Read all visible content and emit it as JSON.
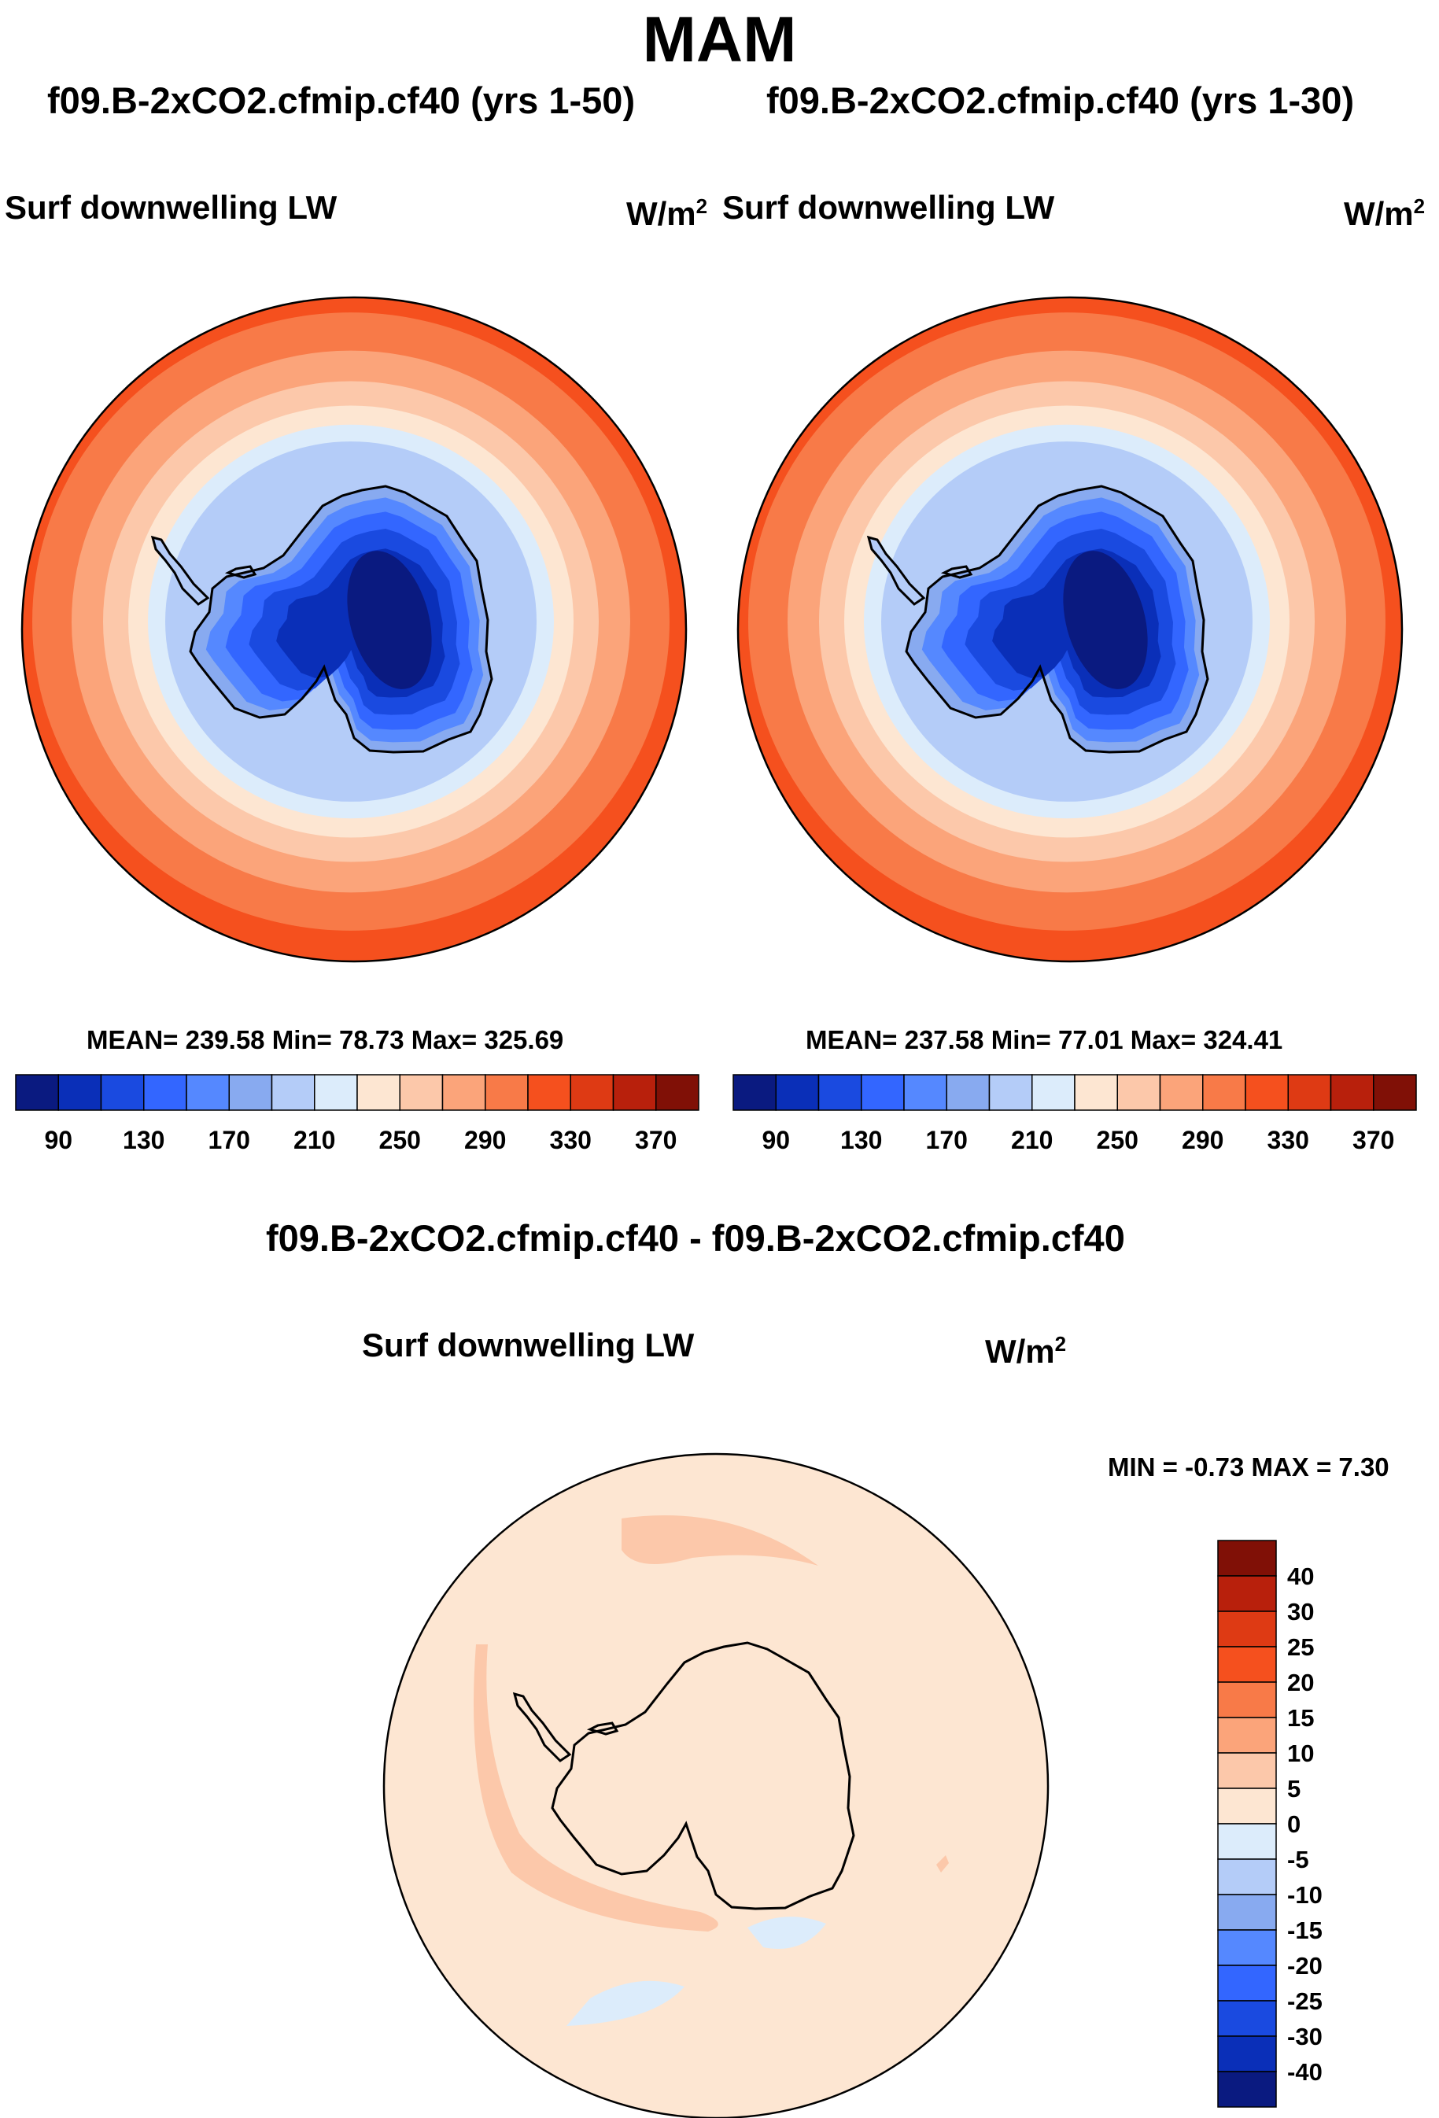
{
  "figure_title": "MAM",
  "chart_data": [
    {
      "type": "filled-contour-map",
      "projection": "south polar stereographic",
      "case": "f09.B-2xCO2.cfmip.cf40 (yrs 1-50)",
      "variable": "Surf downwelling LW",
      "units_base": "W/m",
      "units_exp": "2",
      "stats": {
        "mean": "239.58",
        "min": "78.73",
        "max": "325.69"
      },
      "stats_line": "MEAN= 239.58  Min=  78.73  Max= 325.69",
      "contour_levels": [
        90,
        110,
        130,
        150,
        170,
        190,
        210,
        230,
        250,
        270,
        290,
        310,
        330,
        350,
        370
      ],
      "colorbar_labels": [
        "90",
        "130",
        "170",
        "210",
        "250",
        "290",
        "330",
        "370"
      ]
    },
    {
      "type": "filled-contour-map",
      "projection": "south polar stereographic",
      "case": "f09.B-2xCO2.cfmip.cf40 (yrs 1-30)",
      "variable": "Surf downwelling LW",
      "units_base": "W/m",
      "units_exp": "2",
      "stats": {
        "mean": "237.58",
        "min": "77.01",
        "max": "324.41"
      },
      "stats_line": "MEAN= 237.58  Min=  77.01  Max= 324.41",
      "contour_levels": [
        90,
        110,
        130,
        150,
        170,
        190,
        210,
        230,
        250,
        270,
        290,
        310,
        330,
        350,
        370
      ],
      "colorbar_labels": [
        "90",
        "130",
        "170",
        "210",
        "250",
        "290",
        "330",
        "370"
      ]
    },
    {
      "type": "filled-contour-map",
      "projection": "south polar stereographic",
      "title": "f09.B-2xCO2.cfmip.cf40 - f09.B-2xCO2.cfmip.cf40",
      "variable": "Surf downwelling LW",
      "units_base": "W/m",
      "units_exp": "2",
      "min": "-0.73",
      "max": "7.30",
      "minmax_line": "MIN =  -0.73 MAX =    7.30",
      "contour_levels": [
        -40,
        -30,
        -25,
        -20,
        -15,
        -10,
        -5,
        0,
        5,
        10,
        15,
        20,
        25,
        30,
        40
      ],
      "colorbar_labels": [
        "40",
        "30",
        "25",
        "20",
        "15",
        "10",
        "5",
        "0",
        "-5",
        "-10",
        "-15",
        "-20",
        "-25",
        "-30",
        "-40"
      ]
    }
  ],
  "colors": {
    "abs_palette": [
      "#0a1a80",
      "#0a2fb8",
      "#1a4ae0",
      "#3366ff",
      "#5588ff",
      "#88aaf0",
      "#b4ccf8",
      "#dcecfb",
      "#fde6d2",
      "#fcc8aa",
      "#fba47a",
      "#f87a48",
      "#f5501e",
      "#de3a14",
      "#b8200c",
      "#801006"
    ],
    "diff_palette": [
      "#0a1a80",
      "#0a2fb8",
      "#1a4ae0",
      "#3366ff",
      "#5588ff",
      "#88aaf0",
      "#b4ccf8",
      "#dcecfb",
      "#fde6d2",
      "#fcc8aa",
      "#fba47a",
      "#f87a48",
      "#f5501e",
      "#de3a14",
      "#b8200c",
      "#801006"
    ],
    "land_outline": "#000000"
  }
}
